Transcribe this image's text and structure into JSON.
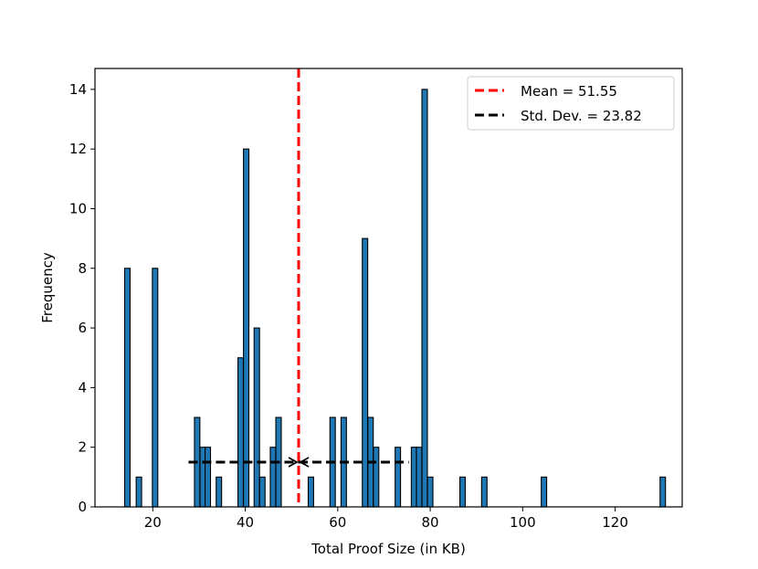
{
  "chart_data": {
    "type": "bar",
    "title": "",
    "xlabel": "Total Proof Size (in KB)",
    "ylabel": "Frequency",
    "xlim": [
      7.5,
      134.5
    ],
    "ylim": [
      0,
      14.7
    ],
    "xticks": [
      20,
      40,
      60,
      80,
      100,
      120
    ],
    "yticks": [
      0,
      2,
      4,
      6,
      8,
      10,
      12,
      14
    ],
    "grid": false,
    "legend_position": "top-right",
    "bin_width": 1.17,
    "bars": [
      {
        "x": 14.5,
        "value": 8
      },
      {
        "x": 17.0,
        "value": 1
      },
      {
        "x": 20.5,
        "value": 8
      },
      {
        "x": 29.6,
        "value": 3
      },
      {
        "x": 30.8,
        "value": 2
      },
      {
        "x": 31.9,
        "value": 2
      },
      {
        "x": 34.3,
        "value": 1
      },
      {
        "x": 39.0,
        "value": 5
      },
      {
        "x": 40.2,
        "value": 12
      },
      {
        "x": 42.5,
        "value": 6
      },
      {
        "x": 43.7,
        "value": 1
      },
      {
        "x": 46.0,
        "value": 2
      },
      {
        "x": 47.2,
        "value": 3
      },
      {
        "x": 54.2,
        "value": 1
      },
      {
        "x": 58.9,
        "value": 3
      },
      {
        "x": 61.3,
        "value": 3
      },
      {
        "x": 65.9,
        "value": 9
      },
      {
        "x": 67.1,
        "value": 3
      },
      {
        "x": 68.3,
        "value": 2
      },
      {
        "x": 73.0,
        "value": 2
      },
      {
        "x": 76.5,
        "value": 2
      },
      {
        "x": 77.6,
        "value": 2
      },
      {
        "x": 78.8,
        "value": 14
      },
      {
        "x": 80.0,
        "value": 1
      },
      {
        "x": 87.0,
        "value": 1
      },
      {
        "x": 91.7,
        "value": 1
      },
      {
        "x": 104.6,
        "value": 1
      },
      {
        "x": 130.3,
        "value": 1
      }
    ],
    "mean": 51.55,
    "std_dev": 23.82,
    "std_dev_y": 1.5,
    "legend": [
      "Mean = 51.55",
      "Std. Dev. = 23.82"
    ],
    "colors": {
      "bar_fill": "#1f77b4",
      "bar_edge": "#000000",
      "mean_line": "#ff0000",
      "std_line": "#000000"
    }
  }
}
